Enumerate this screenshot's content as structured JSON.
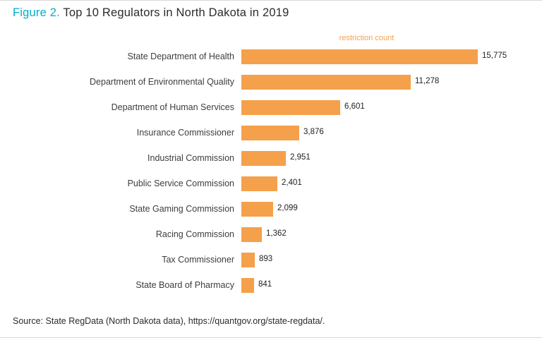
{
  "title": {
    "figure_label": "Figure 2.",
    "text": " Top 10 Regulators in North Dakota in 2019"
  },
  "source": "Source: State RegData (North Dakota data), https://quantgov.org/state-regdata/.",
  "colors": {
    "accent_teal": "#00AEC7",
    "bar_orange": "#F5A04B",
    "text_dark": "#2B2B2B"
  },
  "chart_data": {
    "type": "bar",
    "orientation": "horizontal",
    "title": "Top 10 Regulators in North Dakota in 2019",
    "xlabel": "restriction count",
    "ylabel": "",
    "legend": false,
    "grid": false,
    "xlim": [
      0,
      16000
    ],
    "categories": [
      "State Department of Health",
      "Department of Environmental Quality",
      "Department of Human Services",
      "Insurance Commissioner",
      "Industrial Commission",
      "Public Service Commission",
      "State Gaming Commission",
      "Racing Commission",
      "Tax Commissioner",
      "State Board of Pharmacy"
    ],
    "values": [
      15775,
      11278,
      6601,
      3876,
      2951,
      2401,
      2099,
      1362,
      893,
      841
    ],
    "value_labels": [
      "15,775",
      "11,278",
      "6,601",
      "3,876",
      "2,951",
      "2,401",
      "2,099",
      "1,362",
      "893",
      "841"
    ]
  }
}
